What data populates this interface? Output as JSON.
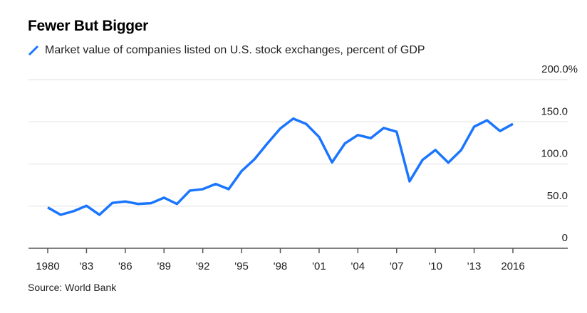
{
  "chart_data": {
    "type": "line",
    "title": "Fewer But Bigger",
    "series": [
      {
        "name": "Market value of companies listed on U.S. stock exchanges, percent of GDP",
        "color": "#1a75ff",
        "x": [
          1980,
          1981,
          1982,
          1983,
          1984,
          1985,
          1986,
          1987,
          1988,
          1989,
          1990,
          1991,
          1992,
          1993,
          1994,
          1995,
          1996,
          1997,
          1998,
          1999,
          2000,
          2001,
          2002,
          2003,
          2004,
          2005,
          2006,
          2007,
          2008,
          2009,
          2010,
          2011,
          2012,
          2013,
          2014,
          2015,
          2016
        ],
        "values": [
          48.4,
          39.7,
          44,
          50.4,
          39.7,
          53.8,
          55.5,
          52.6,
          53.5,
          60,
          52.6,
          68.4,
          70.1,
          76.3,
          70.1,
          91.5,
          105.6,
          124.4,
          142.1,
          153.8,
          147.5,
          132,
          101.9,
          124.4,
          134.3,
          130.6,
          142.7,
          138.2,
          79.4,
          104.7,
          116.6,
          101.6,
          116.6,
          144.2,
          151.8,
          139.1,
          147.5
        ]
      }
    ],
    "xlim": [
      1980,
      2016
    ],
    "ylim": [
      0,
      200
    ],
    "x_ticks": [
      1980,
      1983,
      1986,
      1989,
      1992,
      1995,
      1998,
      2001,
      2004,
      2007,
      2010,
      2013,
      2016
    ],
    "x_tick_labels": [
      "1980",
      "'83",
      "'86",
      "'89",
      "'92",
      "'95",
      "'98",
      "'01",
      "'04",
      "'07",
      "'10",
      "'13",
      "2016"
    ],
    "y_ticks": [
      0,
      50,
      100,
      150,
      200
    ],
    "y_tick_labels": [
      "0",
      "50.0",
      "100.0",
      "150.0",
      "200.0%"
    ],
    "grid": true,
    "legend_position": "top-left",
    "source": "Source: World Bank"
  }
}
